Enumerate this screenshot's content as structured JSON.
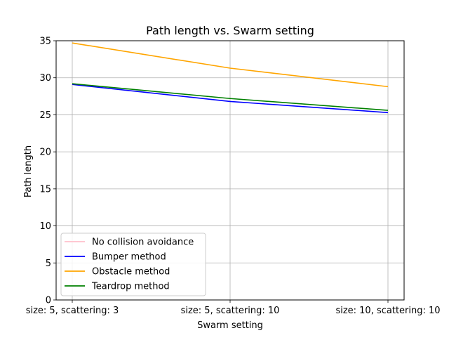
{
  "chart_data": {
    "type": "line",
    "title": "Path length vs. Swarm setting",
    "xlabel": "Swarm setting",
    "ylabel": "Path length",
    "categories": [
      "size: 5, scattering: 3",
      "size: 5, scattering: 10",
      "size: 10, scattering: 10"
    ],
    "ylim": [
      0,
      35
    ],
    "yticks": [
      0,
      5,
      10,
      15,
      20,
      25,
      30,
      35
    ],
    "grid": true,
    "legend_position": "lower-left",
    "series": [
      {
        "name": "No collision avoidance",
        "color": "#ffc0cb",
        "values": [
          null,
          null,
          null
        ]
      },
      {
        "name": "Bumper method",
        "color": "#0000ff",
        "values": [
          29.1,
          26.8,
          25.3
        ]
      },
      {
        "name": "Obstacle method",
        "color": "#ffa500",
        "values": [
          34.7,
          31.3,
          28.8
        ]
      },
      {
        "name": "Teardrop method",
        "color": "#008000",
        "values": [
          29.2,
          27.2,
          25.6
        ]
      }
    ]
  }
}
